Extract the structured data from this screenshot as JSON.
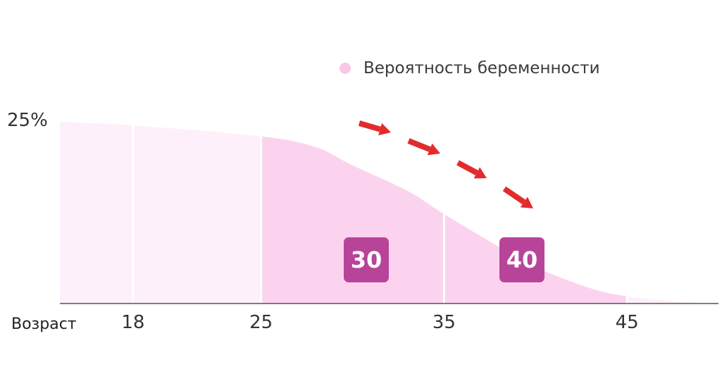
{
  "legend": {
    "label": "Вероятность беременности",
    "color": "#f8c6e7"
  },
  "y_axis": {
    "top_label": "25%"
  },
  "x_axis": {
    "title": "Возраст",
    "ticks": [
      "18",
      "25",
      "35",
      "45"
    ]
  },
  "badges": [
    "30",
    "40"
  ],
  "colors": {
    "light_fill": "#fef0fa",
    "highlight_fill": "#fcd3ee",
    "badge": "#b8449a",
    "arrow": "#e32b2b",
    "axis": "#555555"
  },
  "chart_data": {
    "type": "area",
    "title": "",
    "xlabel": "Возраст",
    "ylabel": "",
    "x": [
      14,
      18,
      25,
      28,
      30,
      33,
      35,
      38,
      40,
      43,
      45,
      48,
      50
    ],
    "series": [
      {
        "name": "Вероятность беременности",
        "values": [
          25,
          24.5,
          23,
          21.5,
          19,
          15.5,
          12.3,
          7.8,
          5.0,
          2.1,
          1.0,
          0.2,
          0
        ]
      }
    ],
    "highlight_range": [
      25,
      45
    ],
    "xlim": [
      14,
      50
    ],
    "ylim": [
      0,
      25
    ],
    "annotations": [
      "30",
      "40"
    ]
  }
}
